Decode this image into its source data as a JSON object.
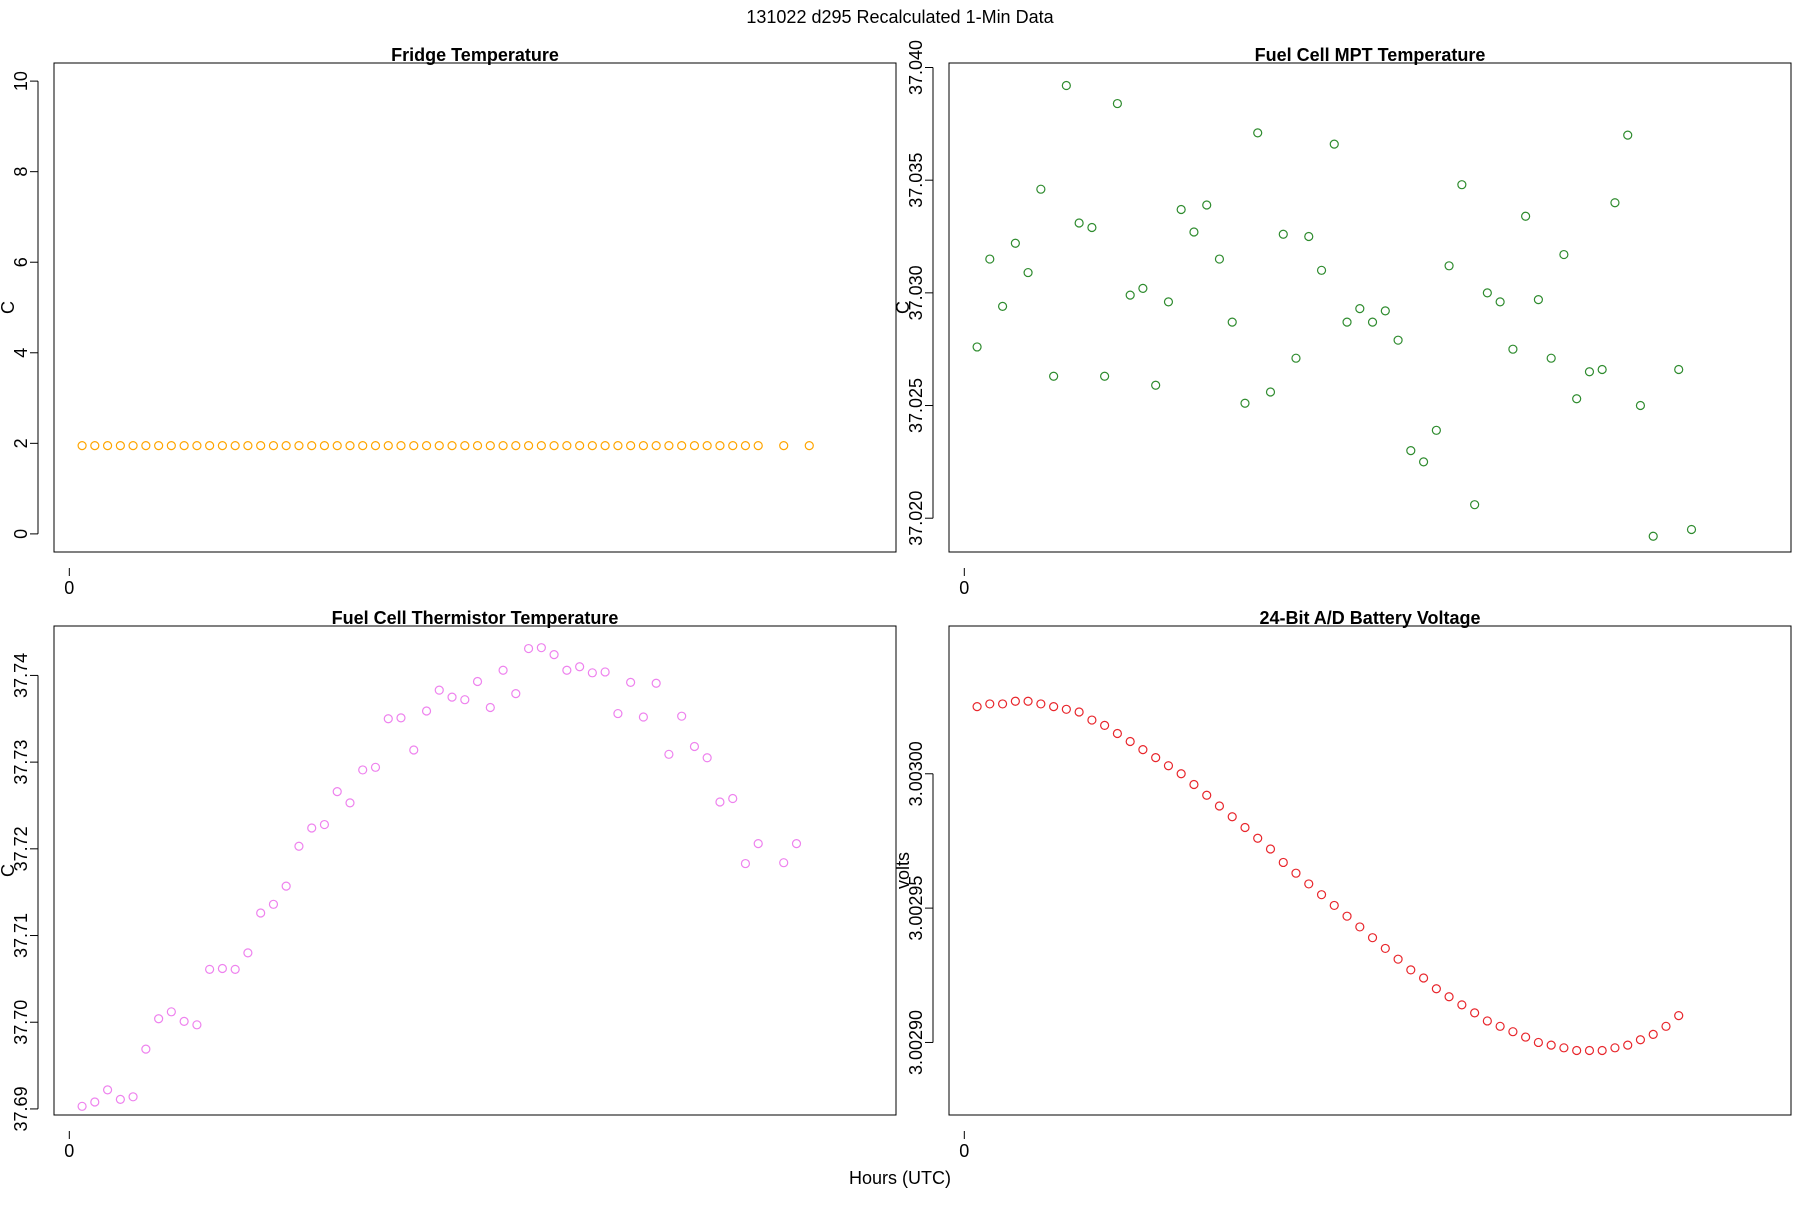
{
  "title": "131022   d295   Recalculated 1-Min Data",
  "xlabel": "Hours (UTC)",
  "chart_data": [
    {
      "type": "scatter",
      "title": "Fridge Temperature",
      "xlabel": "",
      "ylabel": "C",
      "color": "#FFA500",
      "xlim": [
        -0.02,
        1.08
      ],
      "ylim": [
        -0.4,
        10.4
      ],
      "xticks": [
        0
      ],
      "yticks": [
        0,
        2,
        4,
        6,
        8,
        10
      ],
      "yticklabels": [
        "0",
        "2",
        "4",
        "6",
        "8",
        "10"
      ],
      "x": [
        0.0167,
        0.0333,
        0.05,
        0.0667,
        0.0833,
        0.1,
        0.1167,
        0.1333,
        0.15,
        0.1667,
        0.1833,
        0.2,
        0.2167,
        0.2333,
        0.25,
        0.2667,
        0.2833,
        0.3,
        0.3167,
        0.3333,
        0.35,
        0.3667,
        0.3833,
        0.4,
        0.4167,
        0.4333,
        0.45,
        0.4667,
        0.4833,
        0.5,
        0.5167,
        0.5333,
        0.55,
        0.5667,
        0.5833,
        0.6,
        0.6167,
        0.6333,
        0.65,
        0.6667,
        0.6833,
        0.7,
        0.7167,
        0.7333,
        0.75,
        0.7667,
        0.7833,
        0.8,
        0.8167,
        0.8333,
        0.85,
        0.8667,
        0.8833,
        0.9,
        0.9333,
        0.9667
      ],
      "y": [
        1.95,
        1.95,
        1.95,
        1.95,
        1.95,
        1.95,
        1.95,
        1.95,
        1.95,
        1.95,
        1.95,
        1.95,
        1.95,
        1.95,
        1.95,
        1.95,
        1.95,
        1.95,
        1.95,
        1.95,
        1.95,
        1.95,
        1.95,
        1.95,
        1.95,
        1.95,
        1.95,
        1.95,
        1.95,
        1.95,
        1.95,
        1.95,
        1.95,
        1.95,
        1.95,
        1.95,
        1.95,
        1.95,
        1.95,
        1.95,
        1.95,
        1.95,
        1.95,
        1.95,
        1.95,
        1.95,
        1.95,
        1.95,
        1.95,
        1.95,
        1.95,
        1.95,
        1.95,
        1.95,
        1.95,
        1.95
      ]
    },
    {
      "type": "scatter",
      "title": "Fuel Cell MPT Temperature",
      "xlabel": "",
      "ylabel": "C",
      "color": "#2E8B2E",
      "xlim": [
        -0.02,
        1.08
      ],
      "ylim": [
        37.0185,
        37.0402
      ],
      "xticks": [
        0
      ],
      "yticks": [
        37.02,
        37.025,
        37.03,
        37.035,
        37.04
      ],
      "yticklabels": [
        "37.020",
        "37.025",
        "37.030",
        "37.035",
        "37.040"
      ],
      "x": [
        0.0167,
        0.0333,
        0.05,
        0.0667,
        0.0833,
        0.1,
        0.1167,
        0.1333,
        0.15,
        0.1667,
        0.1833,
        0.2,
        0.2167,
        0.2333,
        0.25,
        0.2667,
        0.2833,
        0.3,
        0.3167,
        0.3333,
        0.35,
        0.3667,
        0.3833,
        0.4,
        0.4167,
        0.4333,
        0.45,
        0.4667,
        0.4833,
        0.5,
        0.5167,
        0.5333,
        0.55,
        0.5667,
        0.5833,
        0.6,
        0.6167,
        0.6333,
        0.65,
        0.6667,
        0.6833,
        0.7,
        0.7167,
        0.7333,
        0.75,
        0.7667,
        0.7833,
        0.8,
        0.8167,
        0.8333,
        0.85,
        0.8667,
        0.8833,
        0.9,
        0.9333,
        0.95
      ],
      "y": [
        37.0276,
        37.0315,
        37.0294,
        37.0322,
        37.0309,
        37.0346,
        37.0263,
        37.0392,
        37.0331,
        37.0329,
        37.0263,
        37.0384,
        37.0299,
        37.0302,
        37.0259,
        37.0296,
        37.0337,
        37.0327,
        37.0339,
        37.0315,
        37.0287,
        37.0251,
        37.0371,
        37.0256,
        37.0326,
        37.0271,
        37.0325,
        37.031,
        37.0366,
        37.0287,
        37.0293,
        37.0287,
        37.0292,
        37.0279,
        37.023,
        37.0225,
        37.0239,
        37.0312,
        37.0348,
        37.0206,
        37.03,
        37.0296,
        37.0275,
        37.0334,
        37.0297,
        37.0271,
        37.0317,
        37.0253,
        37.0265,
        37.0266,
        37.034,
        37.037,
        37.025,
        37.0192,
        37.0266,
        37.0195
      ]
    },
    {
      "type": "scatter",
      "title": "Fuel Cell Thermistor Temperature",
      "xlabel": "",
      "ylabel": "C",
      "color": "#EE82EE",
      "xlim": [
        -0.02,
        1.08
      ],
      "ylim": [
        37.6893,
        37.7457
      ],
      "xticks": [
        0
      ],
      "yticks": [
        37.69,
        37.7,
        37.71,
        37.72,
        37.73,
        37.74
      ],
      "yticklabels": [
        "37.69",
        "37.70",
        "37.71",
        "37.72",
        "37.73",
        "37.74"
      ],
      "x": [
        0.0167,
        0.0333,
        0.05,
        0.0667,
        0.0833,
        0.1,
        0.1167,
        0.1333,
        0.15,
        0.1667,
        0.1833,
        0.2,
        0.2167,
        0.2333,
        0.25,
        0.2667,
        0.2833,
        0.3,
        0.3167,
        0.3333,
        0.35,
        0.3667,
        0.3833,
        0.4,
        0.4167,
        0.4333,
        0.45,
        0.4667,
        0.4833,
        0.5,
        0.5167,
        0.5333,
        0.55,
        0.5667,
        0.5833,
        0.6,
        0.6167,
        0.6333,
        0.65,
        0.6667,
        0.6833,
        0.7,
        0.7167,
        0.7333,
        0.75,
        0.7667,
        0.7833,
        0.8,
        0.8167,
        0.8333,
        0.85,
        0.8667,
        0.8833,
        0.9,
        0.9333,
        0.95
      ],
      "y": [
        37.6903,
        37.6908,
        37.6922,
        37.6911,
        37.6914,
        37.6969,
        37.7004,
        37.7012,
        37.7001,
        37.6997,
        37.7061,
        37.7062,
        37.7061,
        37.708,
        37.7126,
        37.7136,
        37.7157,
        37.7203,
        37.7224,
        37.7228,
        37.7266,
        37.7253,
        37.7291,
        37.7294,
        37.735,
        37.7351,
        37.7314,
        37.7359,
        37.7383,
        37.7375,
        37.7372,
        37.7393,
        37.7363,
        37.7406,
        37.7379,
        37.7431,
        37.7432,
        37.7424,
        37.7406,
        37.741,
        37.7403,
        37.7404,
        37.7356,
        37.7392,
        37.7352,
        37.7391,
        37.7309,
        37.7353,
        37.7318,
        37.7305,
        37.7254,
        37.7258,
        37.7183,
        37.7206,
        37.7184,
        37.7206
      ]
    },
    {
      "type": "scatter",
      "title": "24-Bit A/D Battery Voltage",
      "xlabel": "",
      "ylabel": "volts",
      "color": "#E8262C",
      "xlim": [
        -0.02,
        1.08
      ],
      "ylim": [
        3.002873,
        3.003055
      ],
      "xticks": [
        0
      ],
      "yticks": [
        3.0029,
        3.00295,
        3.003
      ],
      "yticklabels": [
        "3.00290",
        "3.00295",
        "3.00300"
      ],
      "x": [
        0.0167,
        0.0333,
        0.05,
        0.0667,
        0.0833,
        0.1,
        0.1167,
        0.1333,
        0.15,
        0.1667,
        0.1833,
        0.2,
        0.2167,
        0.2333,
        0.25,
        0.2667,
        0.2833,
        0.3,
        0.3167,
        0.3333,
        0.35,
        0.3667,
        0.3833,
        0.4,
        0.4167,
        0.4333,
        0.45,
        0.4667,
        0.4833,
        0.5,
        0.5167,
        0.5333,
        0.55,
        0.5667,
        0.5833,
        0.6,
        0.6167,
        0.6333,
        0.65,
        0.6667,
        0.6833,
        0.7,
        0.7167,
        0.7333,
        0.75,
        0.7667,
        0.7833,
        0.8,
        0.8167,
        0.8333,
        0.85,
        0.8667,
        0.8833,
        0.9,
        0.9167,
        0.9333
      ],
      "y": [
        3.003025,
        3.003026,
        3.003026,
        3.003027,
        3.003027,
        3.003026,
        3.003025,
        3.003024,
        3.003023,
        3.00302,
        3.003018,
        3.003015,
        3.003012,
        3.003009,
        3.003006,
        3.003003,
        3.003,
        3.002996,
        3.002992,
        3.002988,
        3.002984,
        3.00298,
        3.002976,
        3.002972,
        3.002967,
        3.002963,
        3.002959,
        3.002955,
        3.002951,
        3.002947,
        3.002943,
        3.002939,
        3.002935,
        3.002931,
        3.002927,
        3.002924,
        3.00292,
        3.002917,
        3.002914,
        3.002911,
        3.002908,
        3.002906,
        3.002904,
        3.002902,
        3.0029,
        3.002899,
        3.002898,
        3.002897,
        3.002897,
        3.002897,
        3.002898,
        3.002899,
        3.002901,
        3.002903,
        3.002906,
        3.00291
      ]
    }
  ]
}
